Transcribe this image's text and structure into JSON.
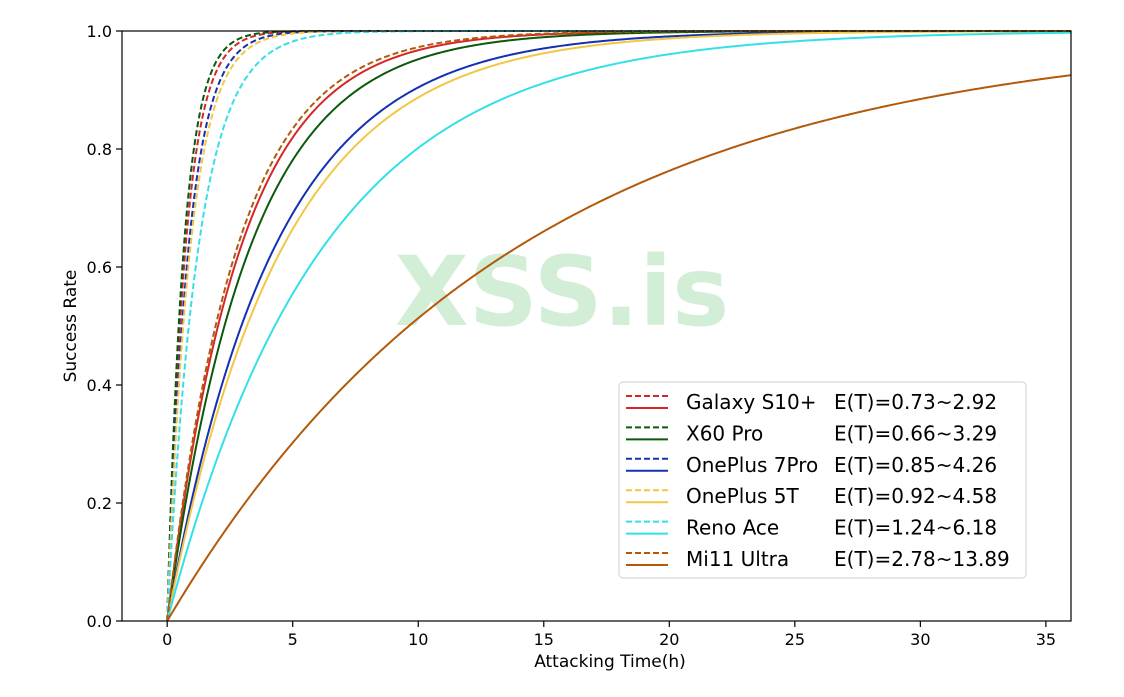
{
  "chart_data": {
    "type": "line",
    "title": "",
    "xlabel": "Attacking Time(h)",
    "ylabel": "Success Rate",
    "xlim": [
      -1.8,
      36
    ],
    "ylim": [
      0,
      1.0
    ],
    "xticks": [
      0,
      5,
      10,
      15,
      20,
      25,
      30,
      35
    ],
    "yticks": [
      0.0,
      0.2,
      0.4,
      0.6,
      0.8,
      1.0
    ],
    "ytick_labels": [
      "0.0",
      "0.2",
      "0.4",
      "0.6",
      "0.8",
      "1.0"
    ],
    "grid": false,
    "legend_position": "lower-right",
    "model": "success = 1 - exp(-t / E(T))",
    "watermark": "XSS.is",
    "series": [
      {
        "name": "Galaxy S10+",
        "range_label": "E(T)=0.73~2.92",
        "color": "#d62728",
        "lower": 0.73,
        "upper": 2.92
      },
      {
        "name": "X60 Pro",
        "range_label": "E(T)=0.66~3.29",
        "color": "#0b5a0b",
        "lower": 0.66,
        "upper": 3.29
      },
      {
        "name": "OnePlus 7Pro",
        "range_label": "E(T)=0.85~4.26",
        "color": "#1530b0",
        "lower": 0.85,
        "upper": 4.26
      },
      {
        "name": "OnePlus 5T",
        "range_label": "E(T)=0.92~4.58",
        "color": "#f2c744",
        "lower": 0.92,
        "upper": 4.58
      },
      {
        "name": "Reno Ace",
        "range_label": "E(T)=1.24~6.18",
        "color": "#33e0e8",
        "lower": 1.24,
        "upper": 6.18
      },
      {
        "name": "Mi11 Ultra",
        "range_label": "E(T)=2.78~13.89",
        "color": "#b35a0a",
        "lower": 2.78,
        "upper": 13.89
      }
    ]
  }
}
